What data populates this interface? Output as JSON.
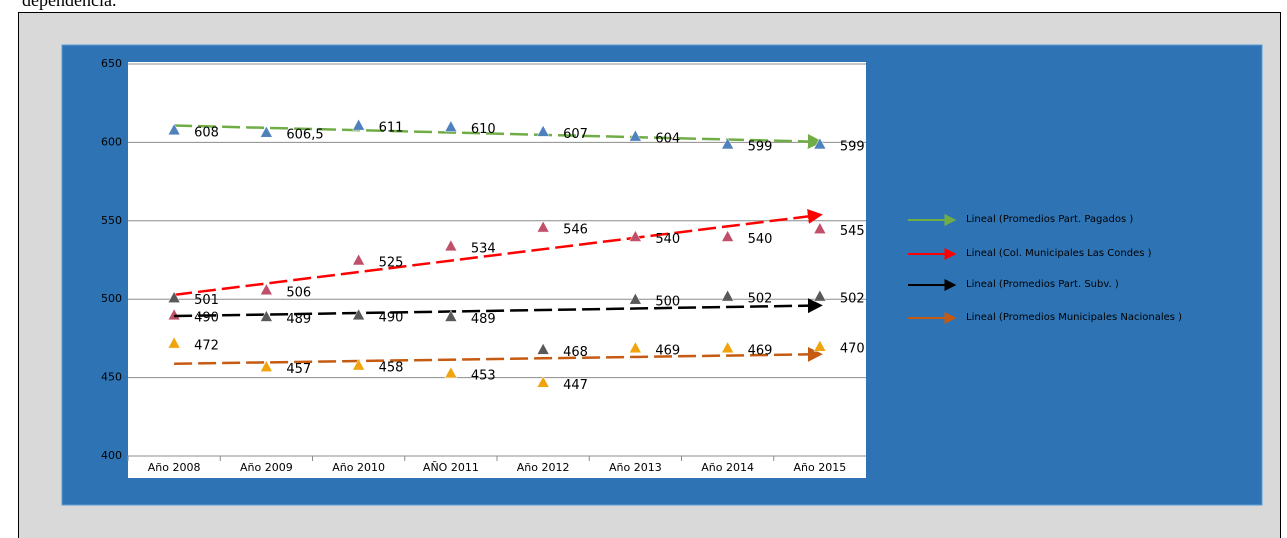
{
  "text_above": "dependencia.",
  "chart_data": {
    "type": "line",
    "categories": [
      "Año 2008",
      "Año 2009",
      "Año 2010",
      "AÑO 2011",
      "Año 2012",
      "Año 2013",
      "Año 2014",
      "Año 2015"
    ],
    "ylim": [
      400,
      650
    ],
    "yticks": [
      400,
      450,
      500,
      550,
      600,
      650
    ],
    "grid": true,
    "trendline": "linear",
    "legend": "right",
    "series": [
      {
        "name": "Lineal (Promedios Part. Pagados )",
        "color": "#70ad47",
        "marker_color": "#4f81bd",
        "values": [
          608,
          606.5,
          611,
          610,
          607,
          604,
          599,
          599
        ],
        "value_labels": [
          "608",
          "606,5",
          "611",
          "610",
          "607",
          "604",
          "599",
          "599"
        ]
      },
      {
        "name": "Lineal (Col. Municipales Las Condes )",
        "color": "#ff0000",
        "marker_color": "#c0506a",
        "values": [
          490,
          506,
          525,
          534,
          546,
          540,
          540,
          545
        ]
      },
      {
        "name": "Lineal (Promedios Part. Subv. )",
        "color": "#000000",
        "marker_color": "#595959",
        "values": [
          501,
          489,
          490,
          489,
          468,
          500,
          502,
          502
        ]
      },
      {
        "name": "Lineal (Promedios Municipales Nacionales )",
        "color": "#c55a11",
        "marker_color": "#f0a30a",
        "values": [
          472,
          457,
          458,
          453,
          447,
          469,
          469,
          470
        ]
      }
    ]
  }
}
